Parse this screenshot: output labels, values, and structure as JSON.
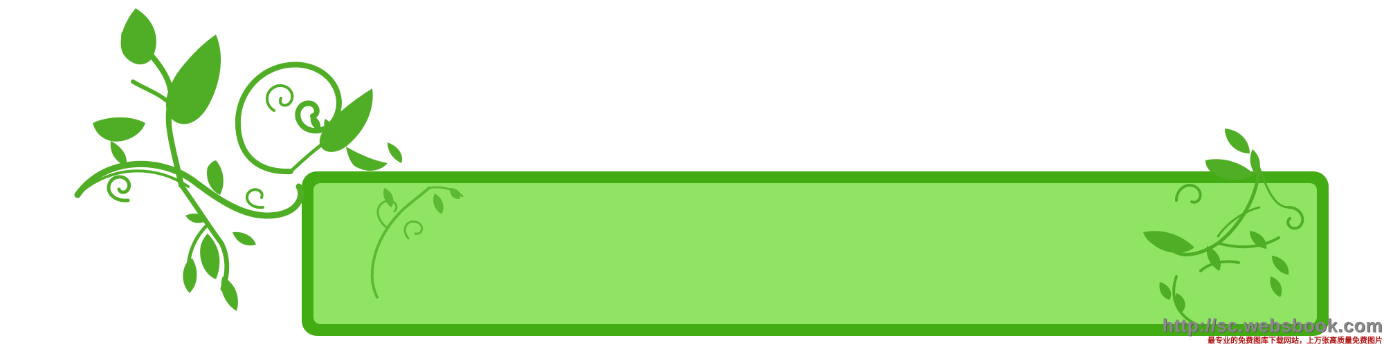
{
  "banner": {
    "frame_color": "#43ab14",
    "panel_color": "#8fe464",
    "vine_color": "#4fae25",
    "inner_vine_color": "#5cb934",
    "icons": [
      "leafy-vine-icon",
      "swirl-icon",
      "leaf-icon"
    ]
  },
  "watermark": {
    "url": "http://sc.websbook.com",
    "tagline": "最专业的免费图库下载网站，上万张高质量免费图片",
    "url_color": "#8a8a8a",
    "tagline_color": "#b01818"
  }
}
